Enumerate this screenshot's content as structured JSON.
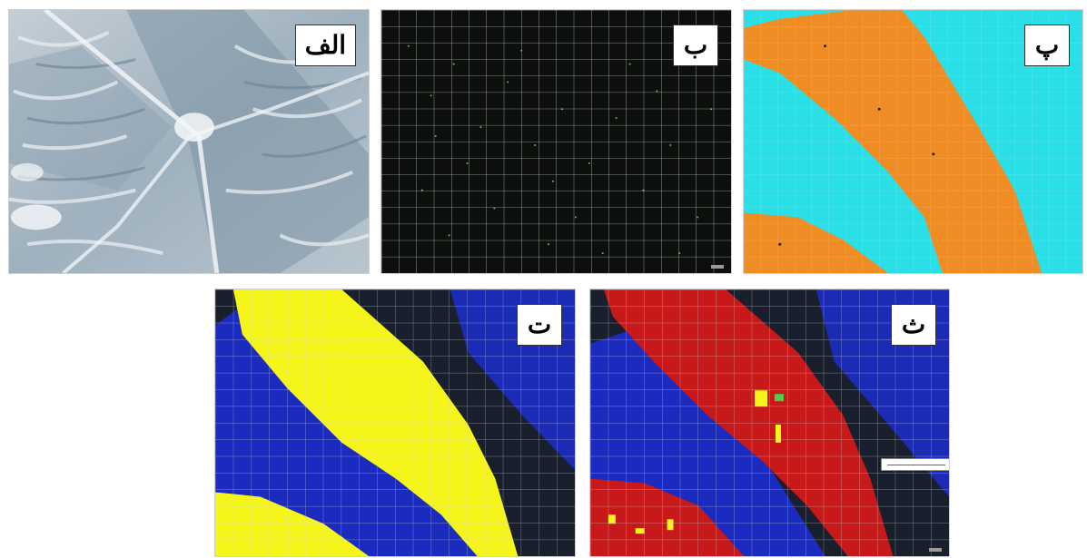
{
  "figure": {
    "panels": [
      {
        "id": "alef",
        "label": "الف",
        "description_hint": "aerial-photo"
      },
      {
        "id": "be",
        "label": "ب",
        "description_hint": "grid-points"
      },
      {
        "id": "pe",
        "label": "پ",
        "description_hint": "two-class-map"
      },
      {
        "id": "te",
        "label": "ت",
        "description_hint": "yellow-blue-classification"
      },
      {
        "id": "se",
        "label": "ث",
        "description_hint": "red-blue-classification"
      }
    ]
  },
  "colors": {
    "aerial_base": "#a8b8c4",
    "grid_bg": "#0c0f0c",
    "orange": "#f08c24",
    "cyan": "#2ae0e6",
    "yellow": "#f5f51a",
    "blue": "#1c2ed8",
    "dark": "#1a1f2e",
    "red": "#c8191a",
    "grid_line": "#cfd6d6"
  }
}
